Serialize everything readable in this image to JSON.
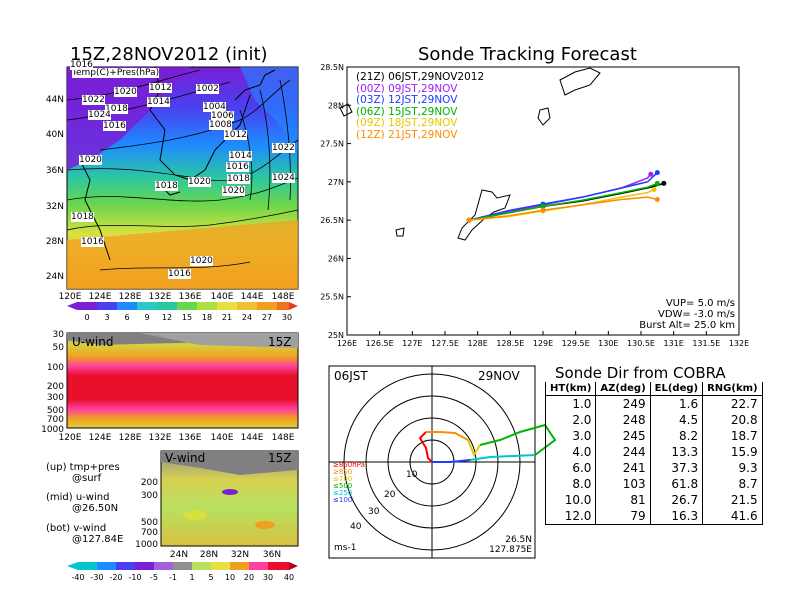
{
  "map_panel": {
    "title": "15Z,28NOV2012 (init)",
    "legend_text": "Temp(C)+Pres(hPa)",
    "y_ticks": [
      "44N",
      "40N",
      "36N",
      "32N",
      "28N",
      "24N"
    ],
    "x_ticks": [
      "120E",
      "124E",
      "128E",
      "132E",
      "136E",
      "140E",
      "144E",
      "148E"
    ],
    "isobar_labels": [
      "1016",
      "1012",
      "1002",
      "1020",
      "1022",
      "1014",
      "1018",
      "1024",
      "1016",
      "1004",
      "1006",
      "1008",
      "1012",
      "1014",
      "1016",
      "1018",
      "1020",
      "1020",
      "1022",
      "1024",
      "1020",
      "1018",
      "1016",
      "1020",
      "1018",
      "1016"
    ],
    "colorbar_ticks": [
      "0",
      "3",
      "6",
      "9",
      "12",
      "15",
      "18",
      "21",
      "24",
      "27",
      "30"
    ]
  },
  "uwind_panel": {
    "label": "U-wind",
    "time": "15Z",
    "y_ticks": [
      "30",
      "50",
      "100",
      "200",
      "300",
      "500",
      "700",
      "1000"
    ],
    "x_ticks": [
      "120E",
      "124E",
      "128E",
      "132E",
      "136E",
      "140E",
      "144E",
      "148E"
    ]
  },
  "vwind_panel": {
    "label": "V-wind",
    "time": "15Z",
    "y_ticks": [
      "200",
      "300",
      "500",
      "700",
      "1000"
    ],
    "x_ticks": [
      "24N",
      "28N",
      "32N",
      "36N"
    ]
  },
  "side_notes": [
    {
      "line1": "(up) tmp+pres",
      "line2": "@surf"
    },
    {
      "line1": "(mid) u-wind",
      "line2": "@26.50N"
    },
    {
      "line1": "(bot) v-wind",
      "line2": "@127.84E"
    }
  ],
  "wind_colorbar_ticks": [
    "-40",
    "-30",
    "-20",
    "-10",
    "-5",
    "-1",
    "1",
    "5",
    "10",
    "20",
    "30",
    "40"
  ],
  "track_panel": {
    "title": "Sonde Tracking Forecast",
    "entries": [
      {
        "label": "(21Z)  06JST,29NOV2012",
        "color": "#000000"
      },
      {
        "label": "(00Z)  09JST,29NOV",
        "color": "#a020f0"
      },
      {
        "label": "(03Z)  12JST,29NOV",
        "color": "#1e3cff"
      },
      {
        "label": "(06Z)  15JST,29NOV",
        "color": "#00b400"
      },
      {
        "label": "(09Z)  18JST,29NOV",
        "color": "#e6c800"
      },
      {
        "label": "(12Z)  21JST,29NOV",
        "color": "#ff8c00"
      }
    ],
    "params": [
      "VUP=  5.0  m/s",
      "VDW= -3.0  m/s",
      "Burst Alt=  25.0  km"
    ]
  },
  "chart_data": {
    "type": "line",
    "title": "Sonde Tracking Forecast",
    "xlabel": "",
    "ylabel": "",
    "x_ticks": [
      "126E",
      "126.5E",
      "127E",
      "127.5E",
      "128E",
      "128.5E",
      "129E",
      "129.5E",
      "130E",
      "130.5E",
      "131E",
      "131.5E",
      "132E"
    ],
    "y_ticks": [
      "25N",
      "25.5N",
      "26N",
      "26.5N",
      "27N",
      "27.5N",
      "28N",
      "28.5N"
    ],
    "xlim": [
      126,
      132
    ],
    "ylim": [
      25,
      28.5
    ],
    "grid": false,
    "series": [
      {
        "name": "(21Z) 06JST,29NOV2012",
        "color": "#000000",
        "points": [
          [
            127.87,
            26.5
          ],
          [
            128.5,
            26.6
          ],
          [
            129.0,
            26.68
          ],
          [
            129.6,
            26.75
          ],
          [
            130.2,
            26.85
          ],
          [
            130.65,
            26.93
          ],
          [
            130.85,
            26.98
          ]
        ]
      },
      {
        "name": "(00Z) 09JST,29NOV",
        "color": "#a020f0",
        "points": [
          [
            127.87,
            26.5
          ],
          [
            128.5,
            26.62
          ],
          [
            129.0,
            26.7
          ],
          [
            129.6,
            26.8
          ],
          [
            130.2,
            26.92
          ],
          [
            130.6,
            27.05
          ],
          [
            130.65,
            27.1
          ]
        ]
      },
      {
        "name": "(03Z) 12JST,29NOV",
        "color": "#1e3cff",
        "points": [
          [
            127.87,
            26.5
          ],
          [
            128.5,
            26.63
          ],
          [
            129.0,
            26.71
          ],
          [
            129.6,
            26.8
          ],
          [
            130.2,
            26.92
          ],
          [
            130.6,
            27.0
          ],
          [
            130.75,
            27.12
          ]
        ]
      },
      {
        "name": "(06Z) 15JST,29NOV",
        "color": "#00b400",
        "points": [
          [
            127.87,
            26.5
          ],
          [
            128.5,
            26.6
          ],
          [
            129.0,
            26.68
          ],
          [
            129.6,
            26.76
          ],
          [
            130.2,
            26.86
          ],
          [
            130.6,
            26.93
          ],
          [
            130.75,
            26.98
          ]
        ]
      },
      {
        "name": "(09Z) 18JST,29NOV",
        "color": "#e6c800",
        "points": [
          [
            127.87,
            26.5
          ],
          [
            128.5,
            26.55
          ],
          [
            129.0,
            26.62
          ],
          [
            129.6,
            26.7
          ],
          [
            130.2,
            26.8
          ],
          [
            130.6,
            26.86
          ],
          [
            130.7,
            26.9
          ]
        ]
      },
      {
        "name": "(12Z) 21JST,29NOV",
        "color": "#ff8c00",
        "points": [
          [
            127.87,
            26.5
          ],
          [
            128.5,
            26.56
          ],
          [
            129.0,
            26.63
          ],
          [
            129.6,
            26.7
          ],
          [
            130.2,
            26.77
          ],
          [
            130.6,
            26.8
          ],
          [
            130.75,
            26.77
          ]
        ]
      }
    ]
  },
  "polar_panel": {
    "left_label": "06JST",
    "right_label": "29NOV",
    "ring_labels": [
      "10",
      "20",
      "30",
      "40"
    ],
    "pressure_labels": [
      {
        "text": "≥850hPa",
        "color": "#ff0000"
      },
      {
        "text": "≥850",
        "color": "#ff8c00"
      },
      {
        "text": "≤700",
        "color": "#e6c800"
      },
      {
        "text": "≤500",
        "color": "#00b400"
      },
      {
        "text": "≤250",
        "color": "#00c8c8"
      },
      {
        "text": "≤100",
        "color": "#1e3cff"
      }
    ],
    "unit": "ms-1",
    "position_line1": "26.5N",
    "position_line2": "127.875E"
  },
  "cobra_table": {
    "title": "Sonde Dir from COBRA",
    "headers": [
      "HT(km)",
      "AZ(deg)",
      "EL(deg)",
      "RNG(km)"
    ],
    "rows": [
      [
        "1.0",
        "249",
        "1.6",
        "22.7"
      ],
      [
        "2.0",
        "248",
        "4.5",
        "20.8"
      ],
      [
        "3.0",
        "245",
        "8.2",
        "18.7"
      ],
      [
        "4.0",
        "244",
        "13.3",
        "15.9"
      ],
      [
        "6.0",
        "241",
        "37.3",
        "9.3"
      ],
      [
        "8.0",
        "103",
        "61.8",
        "8.7"
      ],
      [
        "10.0",
        "81",
        "26.7",
        "21.5"
      ],
      [
        "12.0",
        "79",
        "16.3",
        "41.6"
      ]
    ]
  },
  "colors": {
    "map_purple": "#7a1fd6",
    "map_blue": "#1e5aff",
    "map_green": "#4cd64c",
    "map_yellow": "#f0e040",
    "map_orange": "#f0a020",
    "wind_red": "#e8102a",
    "wind_magenta": "#ff40a0"
  }
}
